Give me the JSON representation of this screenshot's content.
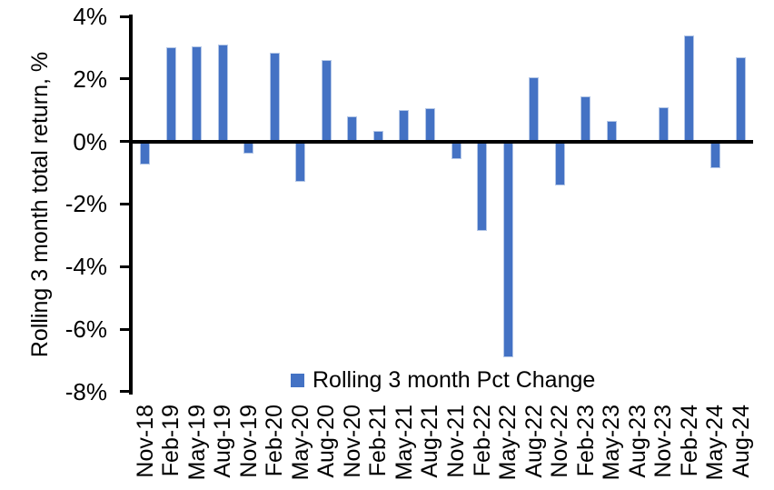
{
  "chart_data": {
    "type": "bar",
    "title": "",
    "ylabel": "Rolling 3 month total return, %",
    "xlabel": "",
    "legend": {
      "label": "Rolling 3 month Pct Change",
      "position": "bottom-center-inside"
    },
    "categories": [
      "Nov-18",
      "Feb-19",
      "May-19",
      "Aug-19",
      "Nov-19",
      "Feb-20",
      "May-20",
      "Aug-20",
      "Nov-20",
      "Feb-21",
      "May-21",
      "Aug-21",
      "Nov-21",
      "Feb-22",
      "May-22",
      "Aug-22",
      "Nov-22",
      "Feb-23",
      "May-23",
      "Aug-23",
      "Nov-23",
      "Feb-24",
      "May-24",
      "Aug-24"
    ],
    "series": [
      {
        "name": "Rolling 3 month Pct Change",
        "values": [
          -0.75,
          3.0,
          3.05,
          3.1,
          -0.4,
          2.85,
          -1.3,
          2.6,
          0.8,
          0.35,
          1.0,
          1.05,
          -0.55,
          -2.85,
          -6.9,
          2.05,
          -1.4,
          1.45,
          0.65,
          0.0,
          1.1,
          3.4,
          -0.85,
          2.7
        ]
      }
    ],
    "ylim": [
      -8,
      4
    ],
    "yticks": [
      {
        "value": 4,
        "label": "4%"
      },
      {
        "value": 2,
        "label": "2%"
      },
      {
        "value": 0,
        "label": "0%"
      },
      {
        "value": -2,
        "label": "-2%"
      },
      {
        "value": -4,
        "label": "-4%"
      },
      {
        "value": -6,
        "label": "-6%"
      },
      {
        "value": -8,
        "label": "-8%"
      }
    ],
    "grid": false,
    "colors": {
      "bar_fill": "#4472C4",
      "bar_border": "#B4C7E7",
      "axis": "#000000",
      "text": "#000000",
      "background": "#FFFFFF"
    }
  }
}
